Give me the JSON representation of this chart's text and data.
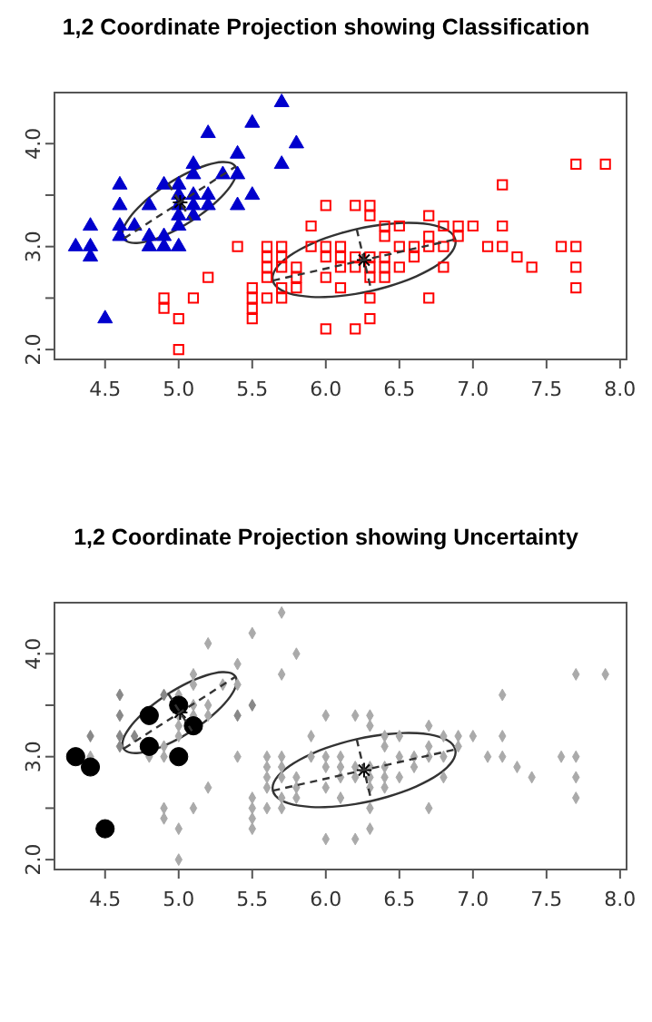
{
  "chart_data": [
    {
      "type": "scatter",
      "title": "1,2 Coordinate Projection showing Classification",
      "xlim": [
        4.156,
        8.044
      ],
      "ylim": [
        1.904,
        4.496
      ],
      "xticks": [
        {
          "value": 4.5,
          "label": "4.5"
        },
        {
          "value": 5,
          "label": "5.0"
        },
        {
          "value": 5.5,
          "label": "5.5"
        },
        {
          "value": 6,
          "label": "6.0"
        },
        {
          "value": 6.5,
          "label": "6.5"
        },
        {
          "value": 7,
          "label": "7.0"
        },
        {
          "value": 7.5,
          "label": "7.5"
        },
        {
          "value": 8,
          "label": "8.0"
        }
      ],
      "yticks": [
        {
          "value": 2,
          "label": "2.0"
        },
        {
          "value": 2.5,
          "label": null
        },
        {
          "value": 3,
          "label": "3.0"
        },
        {
          "value": 3.5,
          "label": null
        },
        {
          "value": 4,
          "label": "4.0"
        }
      ],
      "series": [
        {
          "type": "scatter",
          "marker": "triangle",
          "color": "#0000cd",
          "x": [
            5.1,
            4.9,
            4.7,
            4.6,
            5.0,
            5.4,
            4.6,
            5.0,
            4.4,
            4.9,
            5.4,
            4.8,
            4.8,
            4.3,
            5.8,
            5.7,
            5.7,
            5.1,
            5.4,
            5.1,
            4.6,
            5.1,
            5.0,
            5.2,
            5.2,
            4.8,
            5.2,
            5.5,
            5.0,
            5.5,
            4.9,
            4.4,
            5.1,
            5.0,
            4.5,
            4.4,
            4.6,
            5.3,
            5.0
          ],
          "values": [
            3.5,
            3.0,
            3.2,
            3.1,
            3.6,
            3.9,
            3.4,
            3.4,
            2.9,
            3.1,
            3.7,
            3.4,
            3.0,
            3.0,
            4.0,
            4.4,
            3.8,
            3.8,
            3.4,
            3.7,
            3.6,
            3.3,
            3.0,
            3.5,
            3.4,
            3.1,
            4.1,
            4.2,
            3.2,
            3.5,
            3.6,
            3.0,
            3.4,
            3.5,
            2.3,
            3.2,
            3.2,
            3.7,
            3.3
          ]
        },
        {
          "type": "scatter",
          "marker": "square",
          "color": "#ff0000",
          "x": [
            7.0,
            6.4,
            6.9,
            5.5,
            6.5,
            5.7,
            6.3,
            4.9,
            6.6,
            5.2,
            5.0,
            5.9,
            6.0,
            6.1,
            5.6,
            6.7,
            5.6,
            5.8,
            6.2,
            5.6,
            5.9,
            6.1,
            6.3,
            6.4,
            6.6,
            6.8,
            6.7,
            6.0,
            5.7,
            5.5,
            6.0,
            5.4,
            6.0,
            6.3,
            5.5,
            5.5,
            6.1,
            5.8,
            5.0,
            5.6,
            5.7,
            5.7,
            6.2,
            5.1,
            6.3,
            6.5,
            7.1,
            7.6,
            4.9,
            7.3,
            6.7,
            7.2,
            6.5,
            6.4,
            6.8,
            5.7,
            5.8,
            7.7,
            7.7,
            6.9,
            5.6,
            7.7,
            6.3,
            6.7,
            7.2,
            6.2,
            6.4,
            7.2,
            7.4,
            7.9,
            6.3,
            6.1,
            7.7,
            6.3,
            6.4,
            6.0,
            6.8,
            6.2
          ],
          "values": [
            3.2,
            3.2,
            3.1,
            2.3,
            2.8,
            2.8,
            3.3,
            2.4,
            2.9,
            2.7,
            2.0,
            3.0,
            2.2,
            2.9,
            2.9,
            3.1,
            3.0,
            2.7,
            2.2,
            2.5,
            3.2,
            2.8,
            2.5,
            2.9,
            3.0,
            2.8,
            3.0,
            2.9,
            2.6,
            2.4,
            2.7,
            3.0,
            3.4,
            2.3,
            2.5,
            2.6,
            3.0,
            2.6,
            2.3,
            2.7,
            3.0,
            2.9,
            2.9,
            2.5,
            2.9,
            3.0,
            3.0,
            3.0,
            2.5,
            2.9,
            2.5,
            3.6,
            3.2,
            2.7,
            3.0,
            2.5,
            2.8,
            3.8,
            2.6,
            3.2,
            2.8,
            2.8,
            2.7,
            3.3,
            3.2,
            2.8,
            2.8,
            3.0,
            2.8,
            3.8,
            2.8,
            2.6,
            3.0,
            3.4,
            3.1,
            3.0,
            3.2,
            3.4
          ]
        },
        {
          "type": "line",
          "line_style": "dashed",
          "color": "#333333",
          "x": [
            4.63,
            5.39
          ],
          "values": [
            3.08,
            3.78
          ]
        },
        {
          "type": "line",
          "line_style": "dashed",
          "color": "#333333",
          "x": [
            4.93,
            5.09
          ],
          "values": [
            3.61,
            3.25
          ]
        },
        {
          "type": "line",
          "line_style": "dashed",
          "color": "#333333",
          "x": [
            5.64,
            6.88
          ],
          "values": [
            2.67,
            3.07
          ]
        },
        {
          "type": "line",
          "line_style": "dashed",
          "color": "#333333",
          "x": [
            6.21,
            6.31
          ],
          "values": [
            3.17,
            2.57
          ]
        },
        {
          "type": "scatter",
          "marker": "cross",
          "color": "#000000",
          "x": [
            5.01,
            6.26
          ],
          "values": [
            3.43,
            2.87
          ]
        }
      ]
    },
    {
      "type": "scatter",
      "title": "1,2 Coordinate Projection showing Uncertainty",
      "xlim": [
        4.156,
        8.044
      ],
      "ylim": [
        1.904,
        4.496
      ],
      "xticks": [
        {
          "value": 4.5,
          "label": "4.5"
        },
        {
          "value": 5,
          "label": "5.0"
        },
        {
          "value": 5.5,
          "label": "5.5"
        },
        {
          "value": 6,
          "label": "6.0"
        },
        {
          "value": 6.5,
          "label": "6.5"
        },
        {
          "value": 7,
          "label": "7.0"
        },
        {
          "value": 7.5,
          "label": "7.5"
        },
        {
          "value": 8,
          "label": "8.0"
        }
      ],
      "yticks": [
        {
          "value": 2,
          "label": "2.0"
        },
        {
          "value": 2.5,
          "label": null
        },
        {
          "value": 3,
          "label": "3.0"
        },
        {
          "value": 3.5,
          "label": null
        },
        {
          "value": 4,
          "label": "4.0"
        }
      ],
      "series": [
        {
          "type": "scatter",
          "marker": "diamond",
          "color": "#aaaaaa",
          "x": [
            5.1,
            4.9,
            5.4,
            5.0,
            4.9,
            5.4,
            4.8,
            5.8,
            5.7,
            5.7,
            5.1,
            5.1,
            5.2,
            5.2,
            5.2,
            5.5,
            5.0,
            4.4,
            5.1,
            5.3,
            5.0,
            5.0,
            7.0,
            6.4,
            6.9,
            5.5,
            6.5,
            5.7,
            6.3,
            4.9,
            6.6,
            5.2,
            5.0,
            5.9,
            6.0,
            6.1,
            5.6,
            6.7,
            5.6,
            5.8,
            6.2,
            5.6,
            5.9,
            6.1,
            6.3,
            6.4,
            6.6,
            6.8,
            6.7,
            6.0,
            5.7,
            5.5,
            6.0,
            5.4,
            6.0,
            6.3,
            5.5,
            5.5,
            6.1,
            5.8,
            5.0,
            5.6,
            5.7,
            5.7,
            6.2,
            5.1,
            6.3,
            6.5,
            7.1,
            7.6,
            4.9,
            7.3,
            6.7,
            7.2,
            6.5,
            6.4,
            6.8,
            5.7,
            5.8,
            7.7,
            7.7,
            6.9,
            5.6,
            7.7,
            6.3,
            6.7,
            7.2,
            6.2,
            6.4,
            7.2,
            7.4,
            7.9,
            6.3,
            6.1,
            7.7,
            6.3,
            6.4,
            6.0,
            6.8,
            6.2
          ],
          "values": [
            3.5,
            3.0,
            3.9,
            3.4,
            3.1,
            3.7,
            3.0,
            4.0,
            4.4,
            3.8,
            3.8,
            3.7,
            3.5,
            3.4,
            4.1,
            4.2,
            3.2,
            3.0,
            3.4,
            3.7,
            3.6,
            3.3,
            3.2,
            3.2,
            3.1,
            2.3,
            2.8,
            2.8,
            3.3,
            2.4,
            2.9,
            2.7,
            2.0,
            3.0,
            2.2,
            2.9,
            2.9,
            3.1,
            3.0,
            2.7,
            2.2,
            2.5,
            3.2,
            2.8,
            2.5,
            2.9,
            3.0,
            2.8,
            3.0,
            2.9,
            2.6,
            2.4,
            2.7,
            3.0,
            3.4,
            2.3,
            2.5,
            2.6,
            3.0,
            2.6,
            2.3,
            2.7,
            3.0,
            2.9,
            2.9,
            2.5,
            2.9,
            3.0,
            3.0,
            3.0,
            2.5,
            2.9,
            2.5,
            3.6,
            3.2,
            2.7,
            3.0,
            2.5,
            2.8,
            3.8,
            2.6,
            3.2,
            2.8,
            2.8,
            2.7,
            3.3,
            3.2,
            2.8,
            2.8,
            3.0,
            2.8,
            3.8,
            2.8,
            2.6,
            3.0,
            3.4,
            3.1,
            3.0,
            3.2,
            3.4
          ]
        },
        {
          "type": "scatter",
          "marker": "diamond",
          "color": "#888888",
          "x": [
            4.4,
            4.6,
            4.6,
            4.6,
            4.6,
            4.7,
            5.4,
            5.5,
            4.9
          ],
          "values": [
            3.2,
            3.6,
            3.4,
            3.2,
            3.1,
            3.2,
            3.4,
            3.5,
            3.6
          ]
        },
        {
          "type": "scatter",
          "marker": "circle",
          "color": "#000000",
          "x": [
            4.3,
            4.4,
            4.5,
            4.8,
            4.8,
            5.0,
            5.0,
            5.1
          ],
          "values": [
            3.0,
            2.9,
            2.3,
            3.4,
            3.1,
            3.5,
            3.0,
            3.3
          ]
        },
        {
          "type": "line",
          "line_style": "dashed",
          "color": "#333333",
          "x": [
            4.63,
            5.39
          ],
          "values": [
            3.08,
            3.78
          ]
        },
        {
          "type": "line",
          "line_style": "dashed",
          "color": "#333333",
          "x": [
            4.93,
            5.09
          ],
          "values": [
            3.61,
            3.25
          ]
        },
        {
          "type": "line",
          "line_style": "dashed",
          "color": "#333333",
          "x": [
            5.64,
            6.88
          ],
          "values": [
            2.67,
            3.07
          ]
        },
        {
          "type": "line",
          "line_style": "dashed",
          "color": "#333333",
          "x": [
            6.21,
            6.31
          ],
          "values": [
            3.17,
            2.57
          ]
        },
        {
          "type": "scatter",
          "marker": "cross",
          "color": "#000000",
          "x": [
            5.01,
            6.26
          ],
          "values": [
            3.43,
            2.87
          ]
        }
      ]
    }
  ]
}
